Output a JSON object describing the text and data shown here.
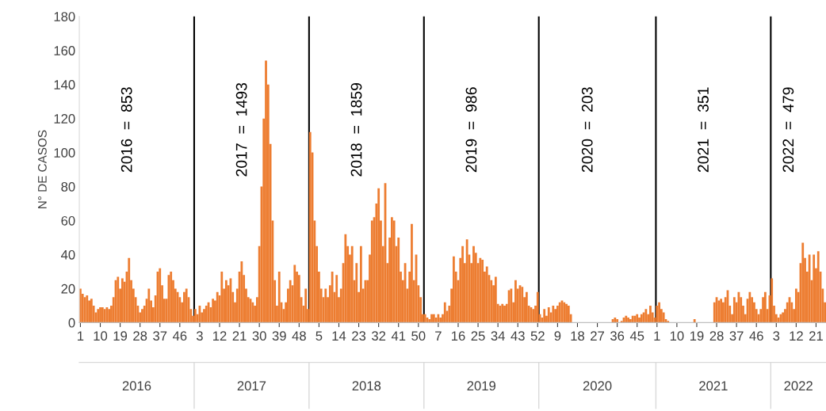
{
  "chart_data": {
    "type": "bar",
    "ylabel": "N° DE CASOS",
    "color": "#ed7d31",
    "categories": [
      "1",
      null,
      null,
      null,
      null,
      null,
      null,
      null,
      null,
      "10",
      null,
      null,
      null,
      null,
      null,
      null,
      null,
      null,
      "19",
      null,
      null,
      null,
      null,
      null,
      null,
      null,
      null,
      "28",
      null,
      null,
      null,
      null,
      null,
      null,
      null,
      null,
      "37",
      null,
      null,
      null,
      null,
      null,
      null,
      null,
      null,
      "46",
      null,
      null,
      null,
      null,
      null,
      null,
      null,
      null,
      "3",
      null,
      null,
      null,
      null,
      null,
      null,
      null,
      null,
      "12",
      null,
      null,
      null,
      null,
      null,
      null,
      null,
      null,
      "21",
      null,
      null,
      null,
      null,
      null,
      null,
      null,
      null,
      "30",
      null,
      null,
      null,
      null,
      null,
      null,
      null,
      null,
      "39",
      null,
      null,
      null,
      null,
      null,
      null,
      null,
      null,
      "48",
      null,
      null,
      null,
      null,
      null,
      null,
      null,
      null,
      "5",
      null,
      null,
      null,
      null,
      null,
      null,
      null,
      null,
      "14",
      null,
      null,
      null,
      null,
      null,
      null,
      null,
      null,
      "23",
      null,
      null,
      null,
      null,
      null,
      null,
      null,
      null,
      "32",
      null,
      null,
      null,
      null,
      null,
      null,
      null,
      null,
      "41",
      null,
      null,
      null,
      null,
      null,
      null,
      null,
      null,
      "50",
      null,
      null,
      null,
      null,
      null,
      null,
      null,
      null,
      "7",
      null,
      null,
      null,
      null,
      null,
      null,
      null,
      null,
      "16",
      null,
      null,
      null,
      null,
      null,
      null,
      null,
      null,
      "25",
      null,
      null,
      null,
      null,
      null,
      null,
      null,
      null,
      "34",
      null,
      null,
      null,
      null,
      null,
      null,
      null,
      null,
      "43",
      null,
      null,
      null,
      null,
      null,
      null,
      null,
      null,
      "52",
      null,
      null,
      null,
      null,
      null,
      null,
      null,
      null,
      "9",
      null,
      null,
      null,
      null,
      null,
      null,
      null,
      null,
      "18",
      null,
      null,
      null,
      null,
      null,
      null,
      null,
      null,
      "27",
      null,
      null,
      null,
      null,
      null,
      null,
      null,
      null,
      "36",
      null,
      null,
      null,
      null,
      null,
      null,
      null,
      null,
      "45",
      null,
      null,
      null,
      null,
      null,
      null,
      null,
      null,
      "1",
      null,
      null,
      null,
      null,
      null,
      null,
      null,
      null,
      "10",
      null,
      null,
      null,
      null,
      null,
      null,
      null,
      null,
      "19",
      null,
      null,
      null,
      null,
      null,
      null,
      null,
      null,
      "28",
      null,
      null,
      null,
      null,
      null,
      null,
      null,
      null,
      "37",
      null,
      null,
      null,
      null,
      null,
      null,
      null,
      null,
      "46",
      null,
      null,
      null,
      null,
      null,
      null,
      null,
      null,
      "3",
      null,
      null,
      null,
      null,
      null,
      null,
      null,
      null,
      "12",
      null,
      null,
      null,
      null,
      null,
      null,
      null,
      null,
      "21",
      null,
      null,
      null,
      null
    ],
    "values": [
      20,
      17,
      15,
      16,
      13,
      14,
      10,
      6,
      8,
      9,
      9,
      8,
      9,
      8,
      10,
      15,
      25,
      27,
      20,
      26,
      24,
      30,
      38,
      25,
      20,
      15,
      10,
      6,
      8,
      10,
      14,
      20,
      13,
      9,
      16,
      30,
      32,
      22,
      14,
      14,
      28,
      30,
      25,
      20,
      18,
      15,
      12,
      18,
      20,
      15,
      8,
      4,
      8,
      5,
      10,
      6,
      8,
      10,
      12,
      9,
      14,
      13,
      18,
      16,
      30,
      20,
      25,
      22,
      26,
      18,
      12,
      20,
      30,
      36,
      28,
      20,
      15,
      14,
      12,
      10,
      15,
      45,
      80,
      120,
      154,
      140,
      105,
      60,
      25,
      10,
      30,
      12,
      8,
      12,
      20,
      25,
      22,
      34,
      30,
      28,
      15,
      10,
      20,
      8,
      112,
      100,
      60,
      45,
      30,
      20,
      15,
      20,
      15,
      22,
      30,
      18,
      28,
      15,
      20,
      35,
      52,
      45,
      40,
      45,
      25,
      35,
      18,
      45,
      20,
      25,
      25,
      40,
      60,
      62,
      70,
      79,
      60,
      45,
      82,
      35,
      50,
      62,
      60,
      45,
      50,
      30,
      25,
      35,
      20,
      30,
      58,
      25,
      40,
      22,
      15,
      5,
      5,
      3,
      2,
      5,
      5,
      3,
      5,
      3,
      5,
      12,
      7,
      10,
      20,
      39,
      30,
      25,
      38,
      45,
      35,
      49,
      40,
      35,
      45,
      41,
      35,
      38,
      37,
      30,
      33,
      28,
      25,
      22,
      27,
      11,
      10,
      11,
      10,
      11,
      19,
      20,
      12,
      25,
      20,
      22,
      21,
      15,
      18,
      10,
      9,
      8,
      10,
      18,
      5,
      3,
      8,
      4,
      9,
      6,
      10,
      8,
      10,
      12,
      13,
      12,
      11,
      10,
      5,
      0,
      0,
      0,
      0,
      0,
      0,
      0,
      0,
      0,
      0,
      0,
      0,
      0,
      0,
      0,
      0,
      0,
      0,
      2,
      3,
      2,
      0,
      1,
      3,
      4,
      3,
      2,
      4,
      4,
      5,
      3,
      5,
      6,
      8,
      5,
      10,
      6,
      3,
      10,
      12,
      8,
      6,
      2,
      1,
      0,
      0,
      0,
      0,
      0,
      0,
      0,
      0,
      0,
      0,
      0,
      2,
      0,
      0,
      0,
      0,
      0,
      0,
      0,
      0,
      12,
      15,
      13,
      14,
      12,
      15,
      19,
      10,
      5,
      15,
      12,
      18,
      15,
      10,
      5,
      14,
      18,
      15,
      12,
      8,
      5,
      8,
      15,
      18,
      8,
      16,
      26,
      10,
      5,
      3,
      5,
      6,
      8,
      12,
      15,
      12,
      8,
      20,
      18,
      35,
      47,
      38,
      30,
      40,
      25,
      40,
      32,
      42,
      30,
      20,
      12
    ],
    "ylim": [
      0,
      180
    ],
    "yticks": [
      0,
      20,
      40,
      60,
      80,
      100,
      120,
      140,
      160,
      180
    ],
    "annotations": [
      "2016  =  853",
      "2017  =  1493",
      "2018  =  1859",
      "2019  =  986",
      "2020  =  203",
      "2021  =  351",
      "2022  =  479",
      "2016",
      "2017",
      "2018",
      "2019",
      "2020",
      "2021",
      "2022"
    ],
    "grid": false,
    "legend": false
  }
}
